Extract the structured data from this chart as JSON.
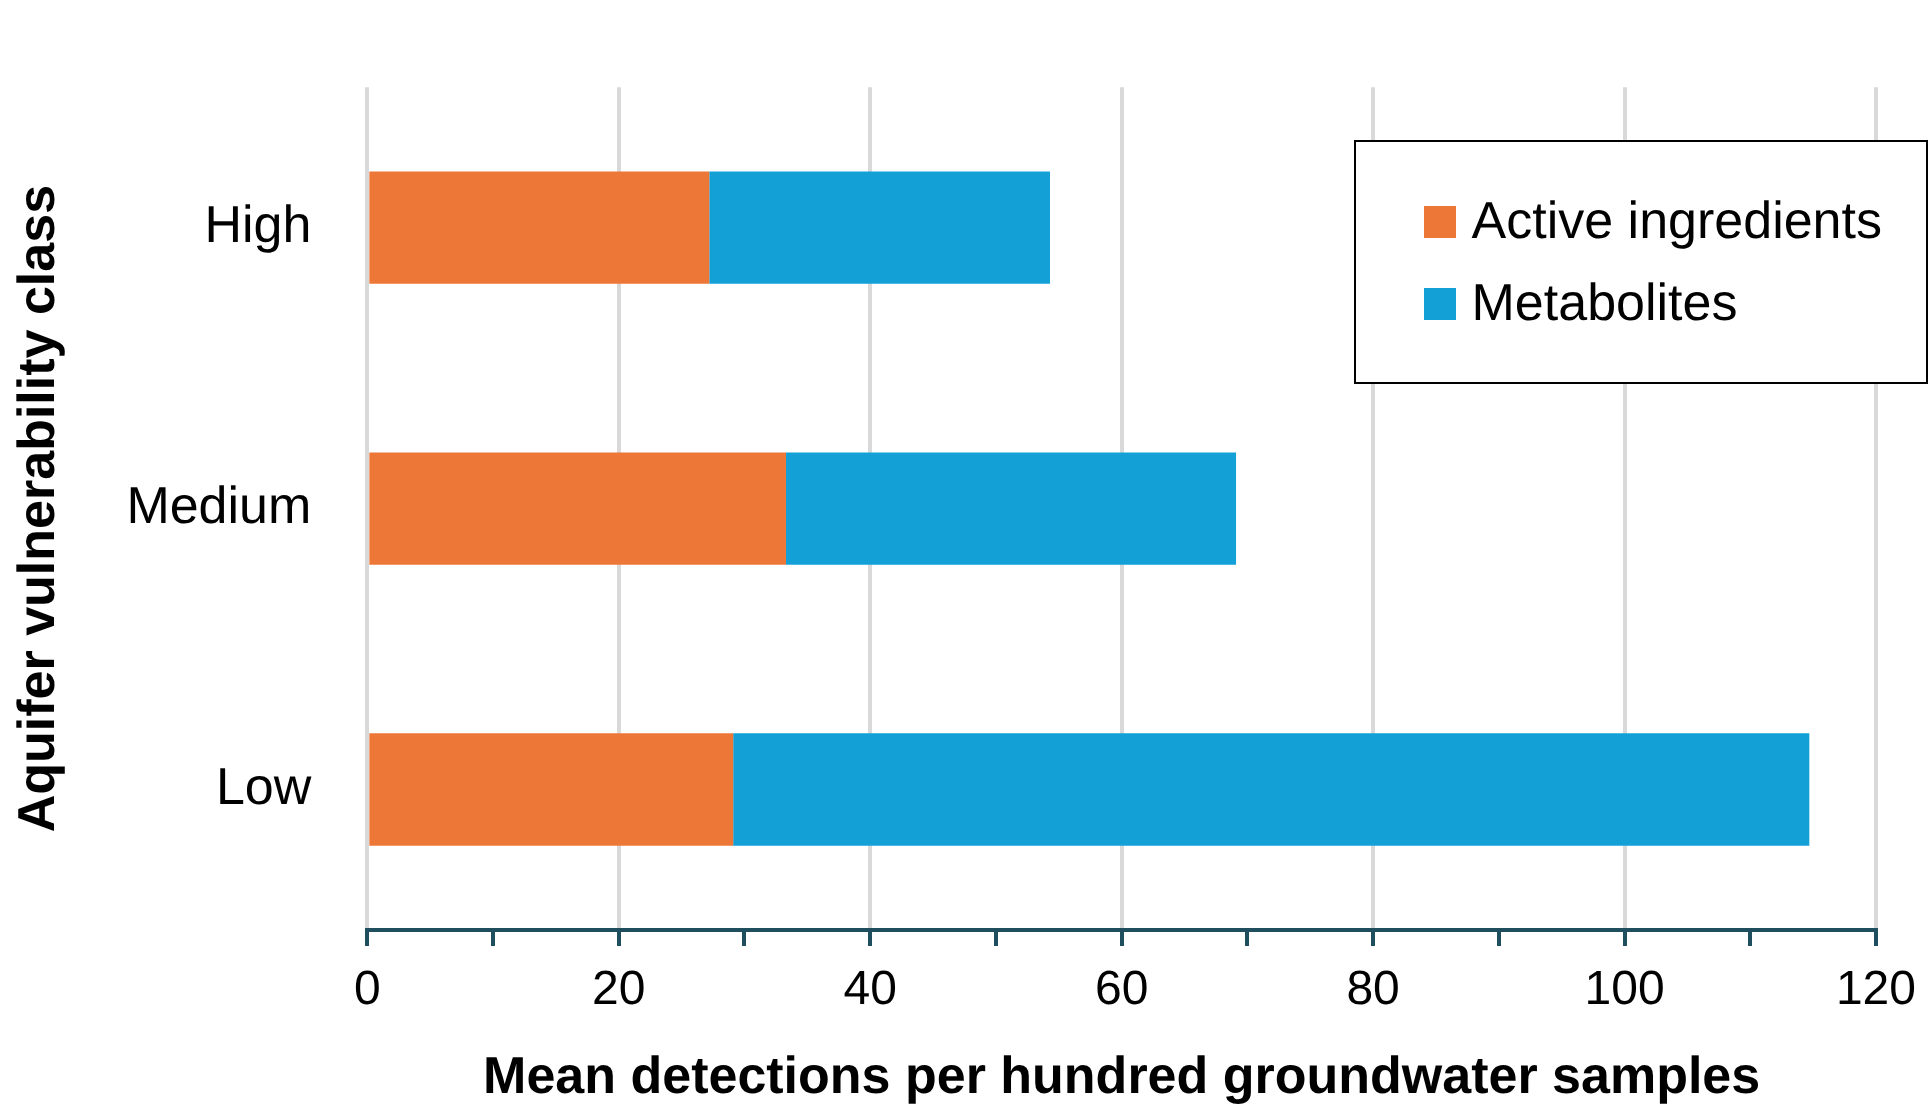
{
  "chart_data": {
    "type": "bar",
    "orientation": "horizontal",
    "stacked": true,
    "categories": [
      "High",
      "Medium",
      "Low"
    ],
    "series": [
      {
        "name": "Active ingredients",
        "color": "#ed7737",
        "values": [
          27.2,
          33.3,
          29.1
        ]
      },
      {
        "name": "Metabolites",
        "color": "#12a0d7",
        "values": [
          27.1,
          35.8,
          85.6
        ]
      }
    ],
    "xlim": [
      0,
      120
    ],
    "xticks": [
      0,
      {
        "value": 10,
        "label": null
      },
      20,
      {
        "value": 30,
        "label": null
      },
      40,
      {
        "value": 50,
        "label": null
      },
      60,
      {
        "value": 70,
        "label": null
      },
      80,
      {
        "value": 90,
        "label": null
      },
      100,
      {
        "value": 110,
        "label": null
      },
      120
    ],
    "xlabel": "Mean detections per hundred groundwater samples",
    "ylabel": "Aquifer vulnerability class",
    "grid": "x",
    "legend": "top right"
  }
}
